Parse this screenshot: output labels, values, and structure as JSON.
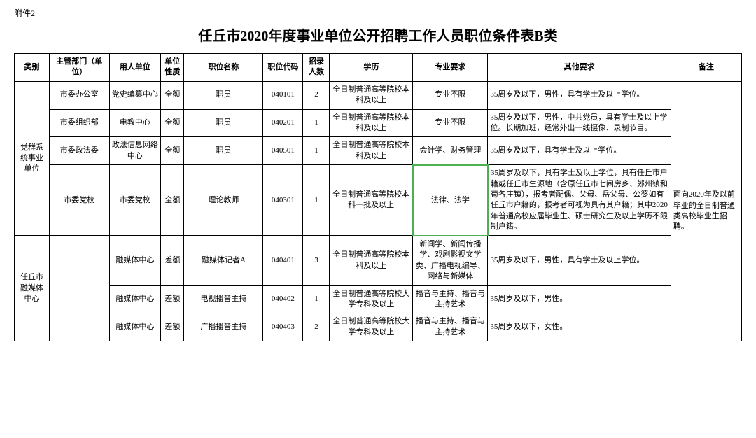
{
  "attachment_label": "附件2",
  "page_title": "任丘市2020年度事业单位公开招聘工作人员职位条件表B类",
  "headers": {
    "category": "类别",
    "dept": "主管部门（单位）",
    "unit": "用人单位",
    "nature": "单位性质",
    "position": "职位名称",
    "code": "职位代码",
    "count": "招录人数",
    "edu": "学历",
    "major": "专业要求",
    "other": "其他要求",
    "remark": "备注"
  },
  "category1": "党群系统事业单位",
  "remark_text": "面向2020年及以前毕业的全日制普通类高校毕业生招聘。",
  "rows": [
    {
      "dept": "市委办公室",
      "unit": "党史编纂中心",
      "nature": "全额",
      "position": "职员",
      "code": "040101",
      "count": "2",
      "edu": "全日制普通高等院校本科及以上",
      "major": "专业不限",
      "other": "35周岁及以下，男性，具有学士及以上学位。"
    },
    {
      "dept": "市委组织部",
      "unit": "电教中心",
      "nature": "全额",
      "position": "职员",
      "code": "040201",
      "count": "1",
      "edu": "全日制普通高等院校本科及以上",
      "major": "专业不限",
      "other": "35周岁及以下，男性，中共党员，具有学士及以上学位。长期加班，经常外出一线摄像、录制节目。"
    },
    {
      "dept": "市委政法委",
      "unit": "政法信息网络中心",
      "nature": "全额",
      "position": "职员",
      "code": "040501",
      "count": "1",
      "edu": "全日制普通高等院校本科及以上",
      "major": "会计学、财务管理",
      "other": "35周岁及以下，具有学士及以上学位。"
    },
    {
      "dept": "市委党校",
      "unit": "市委党校",
      "nature": "全额",
      "position": "理论教师",
      "code": "040301",
      "count": "1",
      "edu": "全日制普通高等院校本科一批及以上",
      "major": "法律、法学",
      "other": "35周岁及以下，具有学士及以上学位，具有任丘市户籍或任丘市生源地（含原任丘市七间房乡、鄚州镇和苟各庄镇），报考者配偶、父母、岳父母、公婆如有任丘市户籍的，报考者可视为具有其户籍；其中2020年普通高校应届毕业生、硕士研究生及以上学历不限制户籍。",
      "highlight_major": true
    },
    {
      "dept": "任丘市融媒体中心",
      "dept_rowspan": 3,
      "unit": "融媒体中心",
      "nature": "差额",
      "position": "融媒体记者A",
      "code": "040401",
      "count": "3",
      "edu": "全日制普通高等院校本科及以上",
      "major": "新闻学、新闻传播学、戏剧影视文学类、广播电视编导、网络与新媒体",
      "other": "35周岁及以下，男性，具有学士及以上学位。"
    },
    {
      "unit": "融媒体中心",
      "nature": "差额",
      "position": "电视播音主持",
      "code": "040402",
      "count": "1",
      "edu": "全日制普通高等院校大学专科及以上",
      "major": "播音与主持、播音与主持艺术",
      "other": "35周岁及以下，男性。"
    },
    {
      "unit": "融媒体中心",
      "nature": "差额",
      "position": "广播播音主持",
      "code": "040403",
      "count": "2",
      "edu": "全日制普通高等院校大学专科及以上",
      "major": "播音与主持、播音与主持艺术",
      "other": "35周岁及以下，女性。"
    }
  ],
  "colors": {
    "highlight_border": "#4caf50",
    "border": "#000000",
    "background": "#ffffff",
    "text": "#000000"
  },
  "table_style": {
    "font_size_header": 11,
    "font_size_body": 11,
    "title_font_size": 20,
    "line_height": 1.4
  }
}
